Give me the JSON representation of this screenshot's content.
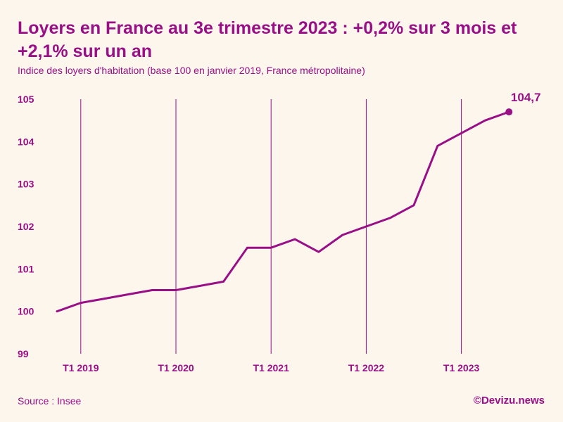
{
  "header": {
    "title": "Loyers en France au 3e trimestre 2023 : +0,2% sur 3 mois et +2,1% sur un an",
    "subtitle": "Indice des loyers d'habitation (base 100 en janvier 2019, France métropolitaine)"
  },
  "footer": {
    "source": "Source : Insee",
    "brand": "©Devizu.news"
  },
  "colors": {
    "accent": "#990f86",
    "background": "#fdf6ec"
  },
  "chart_data": {
    "type": "line",
    "title": "Loyers en France au 3e trimestre 2023 : +0,2% sur 3 mois et +2,1% sur un an",
    "subtitle": "Indice des loyers d'habitation (base 100 en janvier 2019, France métropolitaine)",
    "xlabel": "",
    "ylabel": "",
    "ylim": [
      99,
      105
    ],
    "yticks": [
      "99",
      "100",
      "101",
      "102",
      "103",
      "104",
      "105"
    ],
    "xticks": [
      {
        "label": "T1 2019",
        "index": 1
      },
      {
        "label": "T1 2020",
        "index": 5
      },
      {
        "label": "T1 2021",
        "index": 9
      },
      {
        "label": "T1 2022",
        "index": 13
      },
      {
        "label": "T1 2023",
        "index": 17
      }
    ],
    "x": [
      "T4 2018",
      "T1 2019",
      "T2 2019",
      "T3 2019",
      "T4 2019",
      "T1 2020",
      "T2 2020",
      "T3 2020",
      "T4 2020",
      "T1 2021",
      "T2 2021",
      "T3 2021",
      "T4 2021",
      "T1 2022",
      "T2 2022",
      "T3 2022",
      "T4 2022",
      "T1 2023",
      "T2 2023",
      "T3 2023"
    ],
    "series": [
      {
        "values": [
          100.0,
          100.2,
          100.3,
          100.4,
          100.5,
          100.5,
          100.6,
          100.7,
          101.5,
          101.5,
          101.7,
          101.4,
          101.8,
          102.0,
          102.2,
          102.5,
          103.9,
          104.2,
          104.5,
          104.7
        ]
      }
    ],
    "last_value_label": "104,7",
    "grid": "vertical-at-xticks",
    "legend": "none"
  }
}
